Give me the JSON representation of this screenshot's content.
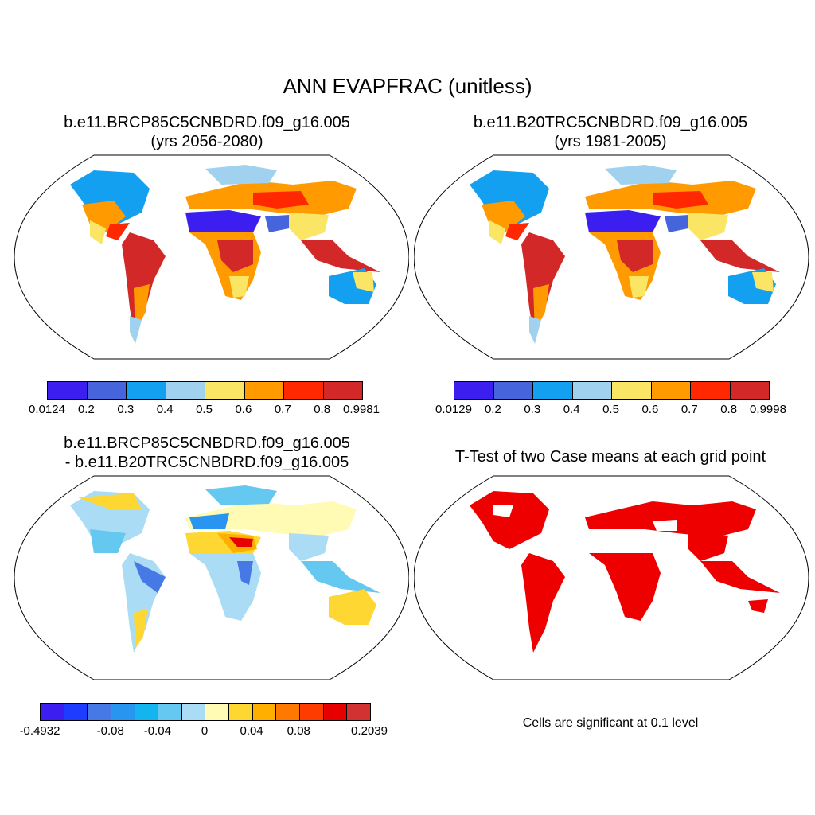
{
  "title": "ANN EVAPFRAC (unitless)",
  "panels": [
    {
      "title_line1": "b.e11.BRCP85C5CNBDRD.f09_g16.005",
      "title_line2": "(yrs 2056-2080)",
      "colorbar": {
        "colors": [
          "#3c1ef0",
          "#4664dc",
          "#14a0f0",
          "#a0d2f0",
          "#fae664",
          "#ff9b00",
          "#ff2800",
          "#d22828"
        ],
        "labels": [
          "0.0124",
          "0.2",
          "0.3",
          "0.4",
          "0.5",
          "0.6",
          "0.7",
          "0.8",
          "0.9981"
        ]
      }
    },
    {
      "title_line1": "b.e11.B20TRC5CNBDRD.f09_g16.005",
      "title_line2": "(yrs 1981-2005)",
      "colorbar": {
        "colors": [
          "#3c1ef0",
          "#4664dc",
          "#14a0f0",
          "#a0d2f0",
          "#fae664",
          "#ff9b00",
          "#ff2800",
          "#d22828"
        ],
        "labels": [
          "0.0129",
          "0.2",
          "0.3",
          "0.4",
          "0.5",
          "0.6",
          "0.7",
          "0.8",
          "0.9998"
        ]
      }
    },
    {
      "title_line1": "b.e11.BRCP85C5CNBDRD.f09_g16.005",
      "title_line2": "- b.e11.B20TRC5CNBDRD.f09_g16.005",
      "colorbar": {
        "colors": [
          "#3c1ef0",
          "#1e3cff",
          "#4678e6",
          "#2896f0",
          "#14b4f0",
          "#64c8f0",
          "#aadcf5",
          "#fffab4",
          "#ffd732",
          "#ffaf00",
          "#ff7800",
          "#ff3c00",
          "#e60000",
          "#d23232"
        ],
        "labels": [
          "-0.4932",
          "-0.08",
          "-0.04",
          "0",
          "0.04",
          "0.08",
          "0.2039"
        ]
      }
    },
    {
      "title_line1": "T-Test of two Case means at each grid point",
      "note": "Cells are significant at 0.1 level",
      "sig_color": "#ee0000"
    }
  ]
}
